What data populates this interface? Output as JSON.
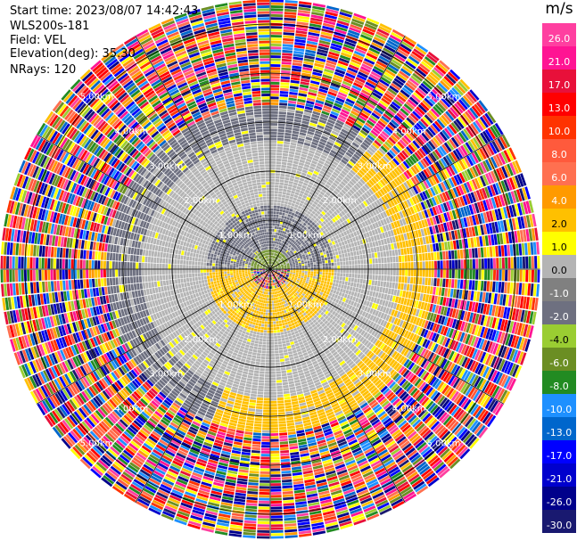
{
  "info": {
    "start_time": "Start time: 2023/08/07 14:42:43",
    "instrument": "WLS200s-181",
    "field": "Field: VEL",
    "elevation": "Elevation(deg): 35.30",
    "nrays": "NRays: 120"
  },
  "chart_data": {
    "type": "heatmap",
    "projection": "polar-ppi",
    "field": "VEL",
    "units": "m/s",
    "nrays": 120,
    "elevation_deg": 35.3,
    "range_rings_km": [
      1,
      2,
      3,
      4,
      5
    ],
    "ring_labels": [
      "1.00km",
      "2.00km",
      "3.00km",
      "4.00km",
      "5.00km"
    ],
    "max_range_km": 5.5,
    "colorbar": {
      "title": "m/s",
      "ticks": [
        "26.0",
        "21.0",
        "17.0",
        "13.0",
        "10.0",
        "8.0",
        "6.0",
        "4.0",
        "2.0",
        "1.0",
        "0.0",
        "-1.0",
        "-2.0",
        "-4.0",
        "-6.0",
        "-8.0",
        "-10.0",
        "-13.0",
        "-17.0",
        "-21.0",
        "-26.0",
        "-30.0"
      ],
      "colors": [
        "#ff3fa0",
        "#ff1493",
        "#e8103a",
        "#ff0000",
        "#ff3300",
        "#ff5a3c",
        "#ff7050",
        "#ff9a00",
        "#ffc000",
        "#ffff00",
        "#b4b4b4",
        "#808080",
        "#6e7080",
        "#9acd32",
        "#6b8e23",
        "#228b22",
        "#1e90ff",
        "#0066cc",
        "#0000ff",
        "#0000cd",
        "#00008b",
        "#191970"
      ]
    },
    "regions": [
      {
        "from_km": 0.0,
        "to_km": 0.4,
        "value": "-6.0",
        "sector": "north"
      },
      {
        "from_km": 0.4,
        "to_km": 1.3,
        "value": "-2.0",
        "sector": "north"
      },
      {
        "from_km": 0.4,
        "to_km": 1.3,
        "value": "2.0",
        "sector": "south"
      },
      {
        "from_km": 1.3,
        "to_km": 2.6,
        "value": "0.0",
        "sector": "all"
      },
      {
        "from_km": 2.6,
        "to_km": 3.3,
        "value": "-2.0",
        "sector": "north-west"
      },
      {
        "from_km": 2.6,
        "to_km": 3.3,
        "value": "2.0",
        "sector": "east-south"
      },
      {
        "from_km": 3.3,
        "to_km": 5.5,
        "value": "noise",
        "sector": "all"
      }
    ]
  }
}
